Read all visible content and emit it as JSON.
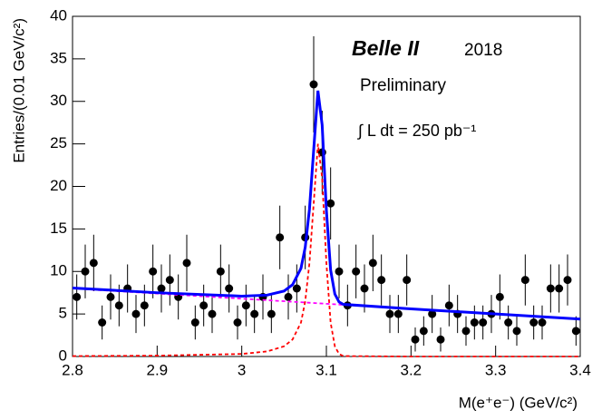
{
  "chart_data": {
    "type": "scatter",
    "xlabel": "M(e⁺e⁻) (GeV/c²)",
    "ylabel": "Entries/(0.01 GeV/c²)",
    "annotations": [
      "Belle II",
      "2018",
      "Preliminary",
      "∫ L dt = 250 pb⁻¹"
    ],
    "xlim": [
      2.8,
      3.4
    ],
    "ylim": [
      0,
      40
    ],
    "xticks": [
      2.8,
      2.9,
      3,
      3.1,
      3.2,
      3.3,
      3.4
    ],
    "yticks": [
      0,
      5,
      10,
      15,
      20,
      25,
      30,
      35,
      40
    ],
    "series": [
      {
        "type": "scatter",
        "color": "#000000",
        "x": [
          2.805,
          2.815,
          2.825,
          2.835,
          2.845,
          2.855,
          2.865,
          2.875,
          2.885,
          2.895,
          2.905,
          2.915,
          2.925,
          2.935,
          2.945,
          2.955,
          2.965,
          2.975,
          2.985,
          2.995,
          3.005,
          3.015,
          3.025,
          3.035,
          3.045,
          3.055,
          3.065,
          3.075,
          3.085,
          3.095,
          3.105,
          3.115,
          3.125,
          3.135,
          3.145,
          3.155,
          3.165,
          3.175,
          3.185,
          3.195,
          3.205,
          3.215,
          3.225,
          3.235,
          3.245,
          3.255,
          3.265,
          3.275,
          3.285,
          3.295,
          3.305,
          3.315,
          3.325,
          3.335,
          3.345,
          3.355,
          3.365,
          3.375,
          3.385,
          3.395
        ],
        "values": [
          7,
          10,
          11,
          4,
          7,
          6,
          8,
          5,
          6,
          10,
          8,
          9,
          7,
          11,
          4,
          6,
          5,
          10,
          8,
          4,
          6,
          5,
          7,
          5,
          14,
          7,
          8,
          14,
          32,
          24,
          18,
          10,
          6,
          10,
          8,
          11,
          9,
          5,
          5,
          9,
          2,
          3,
          5,
          2,
          6,
          5,
          3,
          4,
          4,
          5,
          7,
          4,
          3,
          9,
          4,
          4,
          8,
          8,
          9,
          3
        ],
        "errors": [
          2.65,
          3.16,
          3.32,
          2,
          2.65,
          2.45,
          2.83,
          2.24,
          2.45,
          3.16,
          2.83,
          3,
          2.65,
          3.32,
          2,
          2.45,
          2.24,
          3.16,
          2.83,
          2,
          2.45,
          2.24,
          2.65,
          2.24,
          3.74,
          2.65,
          2.83,
          3.74,
          5.66,
          4.9,
          4.24,
          3.16,
          2.45,
          3.16,
          2.83,
          3.32,
          3,
          2.24,
          2.24,
          3,
          1.41,
          1.73,
          2.24,
          1.41,
          2.45,
          2.24,
          1.73,
          2,
          2,
          2.24,
          2.65,
          2,
          1.73,
          3,
          2,
          2,
          2.83,
          2.83,
          3,
          1.73
        ]
      },
      {
        "type": "line",
        "color": "#ff00ff",
        "dash": true,
        "x": [
          2.8,
          3.4
        ],
        "values": [
          8.0,
          4.4
        ]
      },
      {
        "type": "line",
        "color": "#ff0000",
        "dash": true,
        "x": [
          2.8,
          2.9,
          3.0,
          3.03,
          3.05,
          3.06,
          3.07,
          3.075,
          3.08,
          3.085,
          3.09,
          3.095,
          3.1,
          3.105,
          3.11,
          3.115,
          3.12,
          3.2,
          3.4
        ],
        "values": [
          0.05,
          0.1,
          0.3,
          0.6,
          1.2,
          2,
          4,
          6.5,
          11,
          18,
          25,
          21,
          11,
          4,
          1.2,
          0.3,
          0.05,
          0,
          0
        ]
      },
      {
        "type": "line",
        "color": "#0000ff",
        "dash": false,
        "x": [
          2.8,
          2.9,
          3.0,
          3.03,
          3.05,
          3.06,
          3.07,
          3.075,
          3.08,
          3.085,
          3.09,
          3.095,
          3.1,
          3.105,
          3.11,
          3.115,
          3.12,
          3.2,
          3.4
        ],
        "values": [
          8.05,
          7.5,
          7.1,
          7.22,
          7.7,
          8.44,
          10.38,
          12.85,
          17.32,
          24.29,
          31.26,
          27.23,
          17.2,
          10.17,
          7.34,
          6.41,
          6.13,
          5.6,
          4.4
        ]
      }
    ]
  }
}
